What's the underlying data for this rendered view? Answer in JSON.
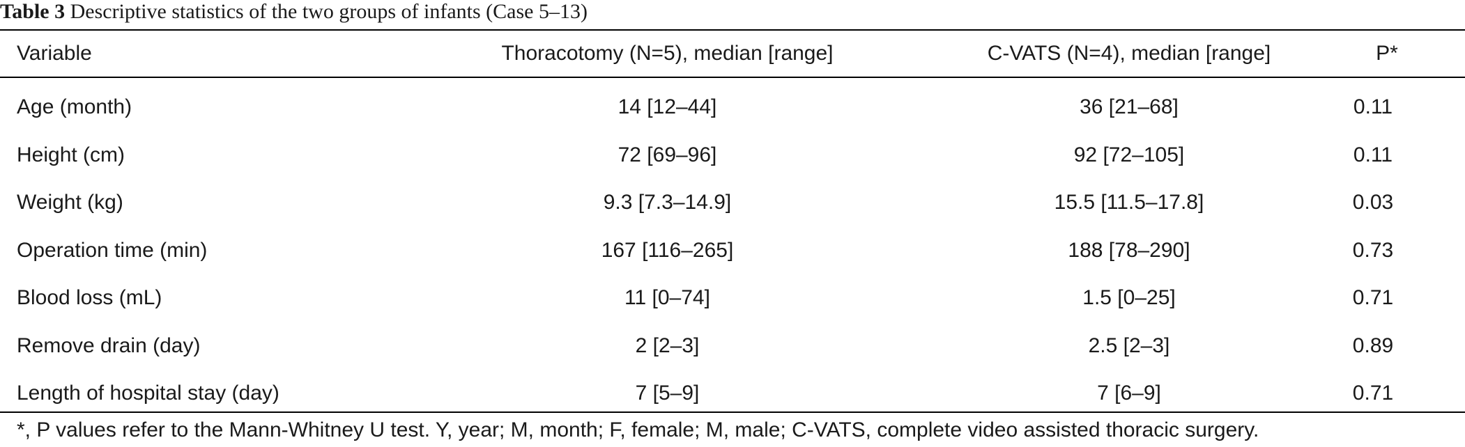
{
  "caption": {
    "label": "Table 3",
    "text": "Descriptive statistics of the two groups of infants (Case 5–13)"
  },
  "table": {
    "headers": [
      "Variable",
      "Thoracotomy (N=5), median [range]",
      "C-VATS (N=4), median [range]",
      "P*"
    ],
    "rows": [
      [
        "Age (month)",
        "14 [12–44]",
        "36 [21–68]",
        "0.11"
      ],
      [
        "Height (cm)",
        "72 [69–96]",
        "92 [72–105]",
        "0.11"
      ],
      [
        "Weight (kg)",
        "9.3 [7.3–14.9]",
        "15.5 [11.5–17.8]",
        "0.03"
      ],
      [
        "Operation time (min)",
        "167 [116–265]",
        "188 [78–290]",
        "0.73"
      ],
      [
        "Blood loss (mL)",
        "11 [0–74]",
        "1.5 [0–25]",
        "0.71"
      ],
      [
        "Remove drain (day)",
        "2 [2–3]",
        "2.5 [2–3]",
        "0.89"
      ],
      [
        "Length of hospital stay (day)",
        "7 [5–9]",
        "7 [6–9]",
        "0.71"
      ]
    ]
  },
  "footnote": "*, P values refer to the Mann-Whitney U test. Y, year; M, month; F, female; M, male; C-VATS, complete video assisted thoracic surgery."
}
